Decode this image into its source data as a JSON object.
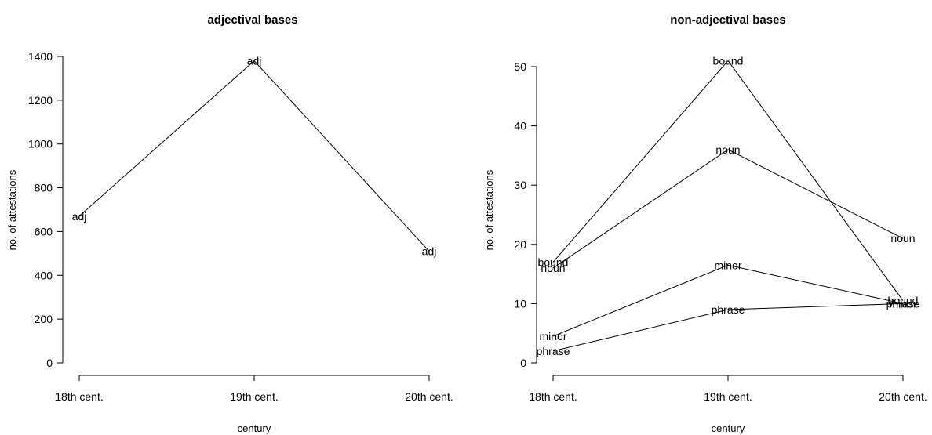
{
  "chart_data": [
    {
      "type": "line",
      "title": "adjectival bases",
      "xlabel": "century",
      "ylabel": "no. of attestations",
      "categories": [
        "18th cent.",
        "19th cent.",
        "20th cent."
      ],
      "ylim": [
        0,
        1400
      ],
      "yticks": [
        0,
        200,
        400,
        600,
        800,
        1000,
        1200,
        1400
      ],
      "grid": false,
      "series": [
        {
          "name": "adj",
          "values": [
            670,
            1380,
            510
          ]
        }
      ]
    },
    {
      "type": "line",
      "title": "non-adjectival bases",
      "xlabel": "century",
      "ylabel": "no. of attestations",
      "categories": [
        "18th cent.",
        "19th cent.",
        "20th cent."
      ],
      "ylim": [
        0,
        50
      ],
      "yticks": [
        0,
        10,
        20,
        30,
        40,
        50
      ],
      "grid": false,
      "series": [
        {
          "name": "bound",
          "values": [
            17,
            51,
            10.5
          ]
        },
        {
          "name": "noun",
          "values": [
            16,
            36,
            21
          ]
        },
        {
          "name": "minor",
          "values": [
            4.5,
            16.5,
            10
          ]
        },
        {
          "name": "phrase",
          "values": [
            2,
            9,
            10
          ]
        }
      ]
    }
  ],
  "colors": {
    "line": "#000000",
    "background": "#ffffff"
  }
}
